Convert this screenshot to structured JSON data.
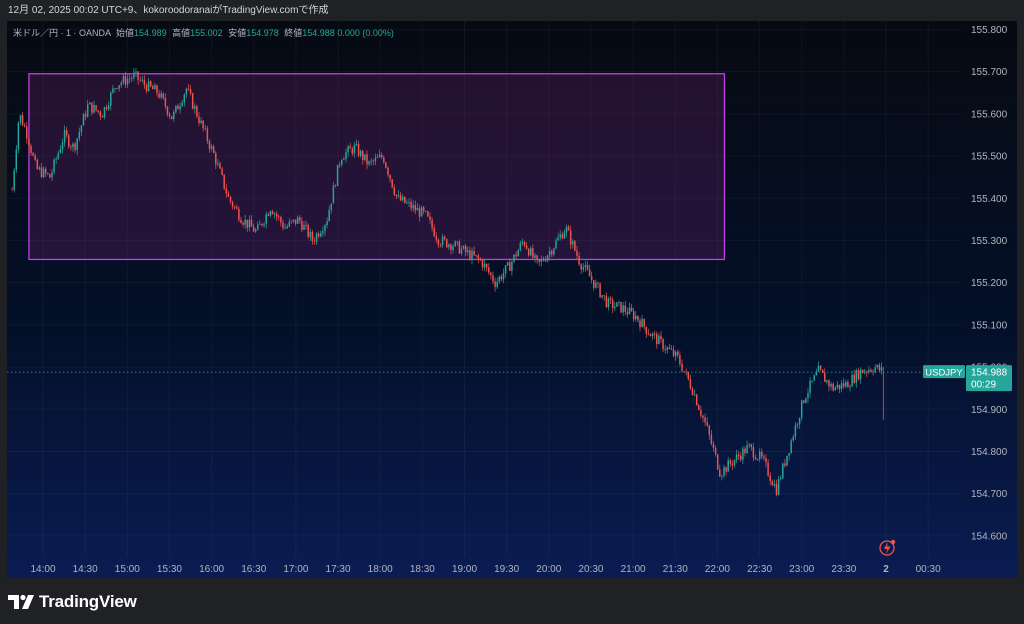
{
  "header": {
    "caption": "12月 02, 2025 00:02 UTC+9、kokoroodoranaiがTradingView.comで作成"
  },
  "legend": {
    "symbol": "米ドル／円 · 1 · OANDA",
    "open_label": "始値",
    "open": "154.989",
    "high_label": "高値",
    "high": "155.002",
    "low_label": "安値",
    "low": "154.978",
    "close_label": "終値",
    "close": "154.988",
    "change": "0.000 (0.00%)"
  },
  "price_tag": {
    "symbol": "USDJPY",
    "price": "154.988",
    "countdown": "00:29"
  },
  "footer": {
    "brand": "TradingView"
  },
  "colors": {
    "up": "#26a69a",
    "down": "#ef5350",
    "box_border": "#c13fe3",
    "box_fill": "rgba(150,40,140,0.22)"
  },
  "chart_data": {
    "type": "candlestick",
    "ylim": [
      154.55,
      155.82
    ],
    "y_ticks": [
      "155.800",
      "155.700",
      "155.600",
      "155.500",
      "155.400",
      "155.300",
      "155.200",
      "155.100",
      "155.000",
      "154.900",
      "154.800",
      "154.700",
      "154.600"
    ],
    "x_ticks": [
      "14:00",
      "14:30",
      "15:00",
      "15:30",
      "16:00",
      "16:30",
      "17:00",
      "17:30",
      "18:00",
      "18:30",
      "19:00",
      "19:30",
      "20:00",
      "20:30",
      "21:00",
      "21:30",
      "22:00",
      "22:30",
      "23:00",
      "23:30",
      "2",
      "00:30"
    ],
    "current_price": 154.988,
    "rectangle": {
      "x_from": "13:50",
      "x_to": "22:05",
      "y_from": 155.255,
      "y_to": 155.695
    },
    "price_path": [
      [
        "13:38",
        155.42
      ],
      [
        "13:43",
        155.6
      ],
      [
        "13:48",
        155.56
      ],
      [
        "13:55",
        155.47
      ],
      [
        "14:05",
        155.45
      ],
      [
        "14:15",
        155.55
      ],
      [
        "14:22",
        155.52
      ],
      [
        "14:32",
        155.62
      ],
      [
        "14:42",
        155.6
      ],
      [
        "14:52",
        155.67
      ],
      [
        "15:05",
        155.69
      ],
      [
        "15:12",
        155.67
      ],
      [
        "15:22",
        155.65
      ],
      [
        "15:32",
        155.59
      ],
      [
        "15:42",
        155.66
      ],
      [
        "15:52",
        155.58
      ],
      [
        "16:02",
        155.5
      ],
      [
        "16:12",
        155.4
      ],
      [
        "16:22",
        155.35
      ],
      [
        "16:32",
        155.32
      ],
      [
        "16:42",
        155.38
      ],
      [
        "16:52",
        155.33
      ],
      [
        "17:02",
        155.35
      ],
      [
        "17:12",
        155.3
      ],
      [
        "17:22",
        155.35
      ],
      [
        "17:32",
        155.5
      ],
      [
        "17:42",
        155.52
      ],
      [
        "17:52",
        155.48
      ],
      [
        "18:02",
        155.5
      ],
      [
        "18:12",
        155.4
      ],
      [
        "18:22",
        155.38
      ],
      [
        "18:32",
        155.36
      ],
      [
        "18:42",
        155.3
      ],
      [
        "18:52",
        155.29
      ],
      [
        "19:02",
        155.27
      ],
      [
        "19:12",
        155.25
      ],
      [
        "19:22",
        155.2
      ],
      [
        "19:32",
        155.24
      ],
      [
        "19:42",
        155.3
      ],
      [
        "19:52",
        155.24
      ],
      [
        "20:02",
        155.28
      ],
      [
        "20:12",
        155.33
      ],
      [
        "20:22",
        155.25
      ],
      [
        "20:32",
        155.2
      ],
      [
        "20:42",
        155.15
      ],
      [
        "20:52",
        155.14
      ],
      [
        "21:02",
        155.12
      ],
      [
        "21:12",
        155.08
      ],
      [
        "21:22",
        155.05
      ],
      [
        "21:32",
        155.02
      ],
      [
        "21:42",
        154.95
      ],
      [
        "21:52",
        154.86
      ],
      [
        "22:02",
        154.75
      ],
      [
        "22:12",
        154.78
      ],
      [
        "22:22",
        154.81
      ],
      [
        "22:32",
        154.78
      ],
      [
        "22:42",
        154.71
      ],
      [
        "22:52",
        154.82
      ],
      [
        "23:02",
        154.93
      ],
      [
        "23:12",
        154.99
      ],
      [
        "23:22",
        154.95
      ],
      [
        "23:32",
        154.96
      ],
      [
        "23:42",
        154.99
      ],
      [
        "23:52",
        155.0
      ],
      [
        "23:57",
        154.99
      ]
    ]
  }
}
